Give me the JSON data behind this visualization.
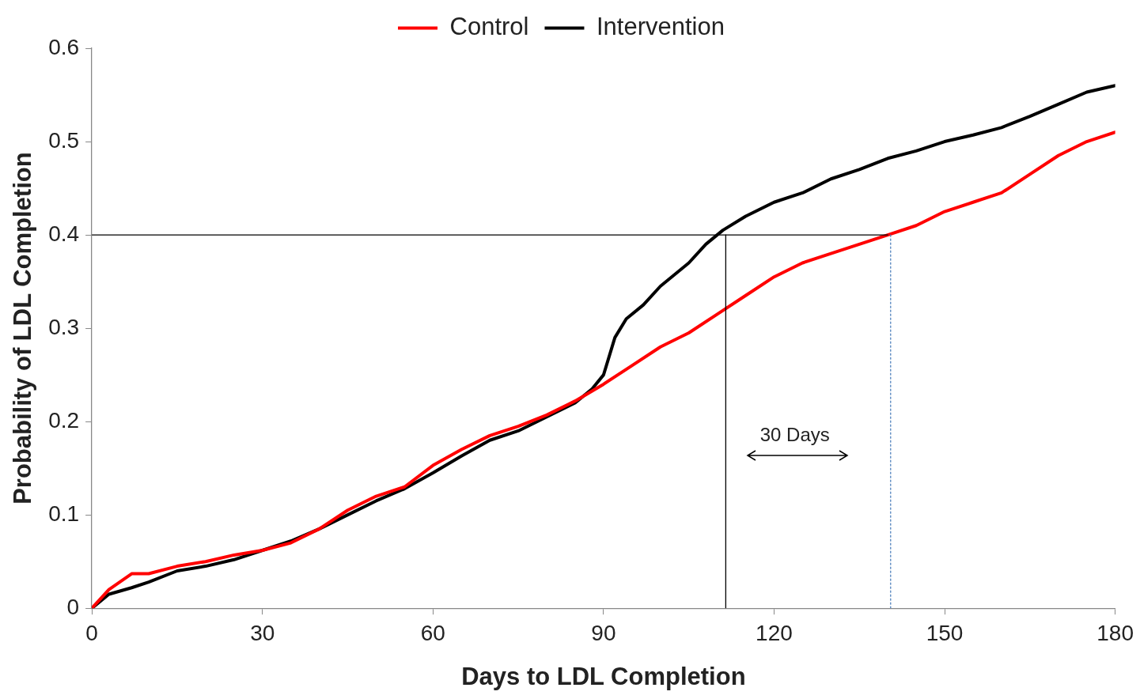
{
  "chart_data": {
    "type": "line",
    "xlabel": "Days to LDL Completion",
    "ylabel": "Probability of LDL Completion",
    "xlim": [
      0,
      180
    ],
    "xticks": [
      0,
      30,
      60,
      90,
      120,
      150,
      180
    ],
    "ylim": [
      0,
      0.6
    ],
    "yticks": [
      0,
      0.1,
      0.2,
      0.3,
      0.4,
      0.5,
      0.6
    ],
    "grid": false,
    "legend": "top",
    "marker": "none",
    "line_style": "solid",
    "annotations": [
      "30 Days"
    ],
    "series": [
      {
        "name": "Control",
        "color": "#ff0000",
        "x": [
          0,
          3,
          7,
          10,
          15,
          20,
          25,
          30,
          35,
          40,
          45,
          50,
          55,
          60,
          65,
          70,
          75,
          80,
          85,
          90,
          95,
          100,
          105,
          110,
          115,
          120,
          125,
          130,
          135,
          140,
          145,
          150,
          155,
          160,
          165,
          170,
          175,
          180
        ],
        "values": [
          0,
          0.02,
          0.037,
          0.037,
          0.045,
          0.05,
          0.057,
          0.062,
          0.07,
          0.085,
          0.105,
          0.12,
          0.13,
          0.153,
          0.17,
          0.185,
          0.195,
          0.207,
          0.222,
          0.24,
          0.26,
          0.28,
          0.295,
          0.315,
          0.335,
          0.355,
          0.37,
          0.38,
          0.39,
          0.4,
          0.41,
          0.425,
          0.435,
          0.445,
          0.465,
          0.485,
          0.5,
          0.51
        ]
      },
      {
        "name": "Intervention",
        "color": "#000000",
        "x": [
          0,
          3,
          7,
          10,
          15,
          20,
          25,
          30,
          35,
          40,
          45,
          50,
          55,
          60,
          65,
          70,
          75,
          80,
          85,
          88,
          90,
          92,
          94,
          97,
          100,
          105,
          108,
          111,
          115,
          120,
          125,
          130,
          135,
          140,
          145,
          150,
          155,
          160,
          165,
          170,
          175,
          180
        ],
        "values": [
          0,
          0.015,
          0.022,
          0.028,
          0.04,
          0.045,
          0.052,
          0.062,
          0.072,
          0.085,
          0.1,
          0.115,
          0.128,
          0.145,
          0.163,
          0.18,
          0.19,
          0.205,
          0.22,
          0.235,
          0.25,
          0.29,
          0.31,
          0.325,
          0.345,
          0.37,
          0.39,
          0.405,
          0.42,
          0.435,
          0.445,
          0.46,
          0.47,
          0.482,
          0.49,
          0.5,
          0.507,
          0.515,
          0.527,
          0.54,
          0.553,
          0.56
        ]
      },
      {
        "type": "line",
        "color": "#000000",
        "x": [
          0,
          140
        ],
        "values": [
          0.4,
          0.4
        ]
      },
      {
        "type": "line",
        "color": "#000000",
        "x": [
          111.5,
          111.5
        ],
        "values": [
          0,
          0.4
        ]
      },
      {
        "type": "line",
        "color": "#4f81bd",
        "line_style": "dotted",
        "x": [
          140.5,
          140.5
        ],
        "values": [
          0,
          0.4
        ]
      }
    ]
  }
}
